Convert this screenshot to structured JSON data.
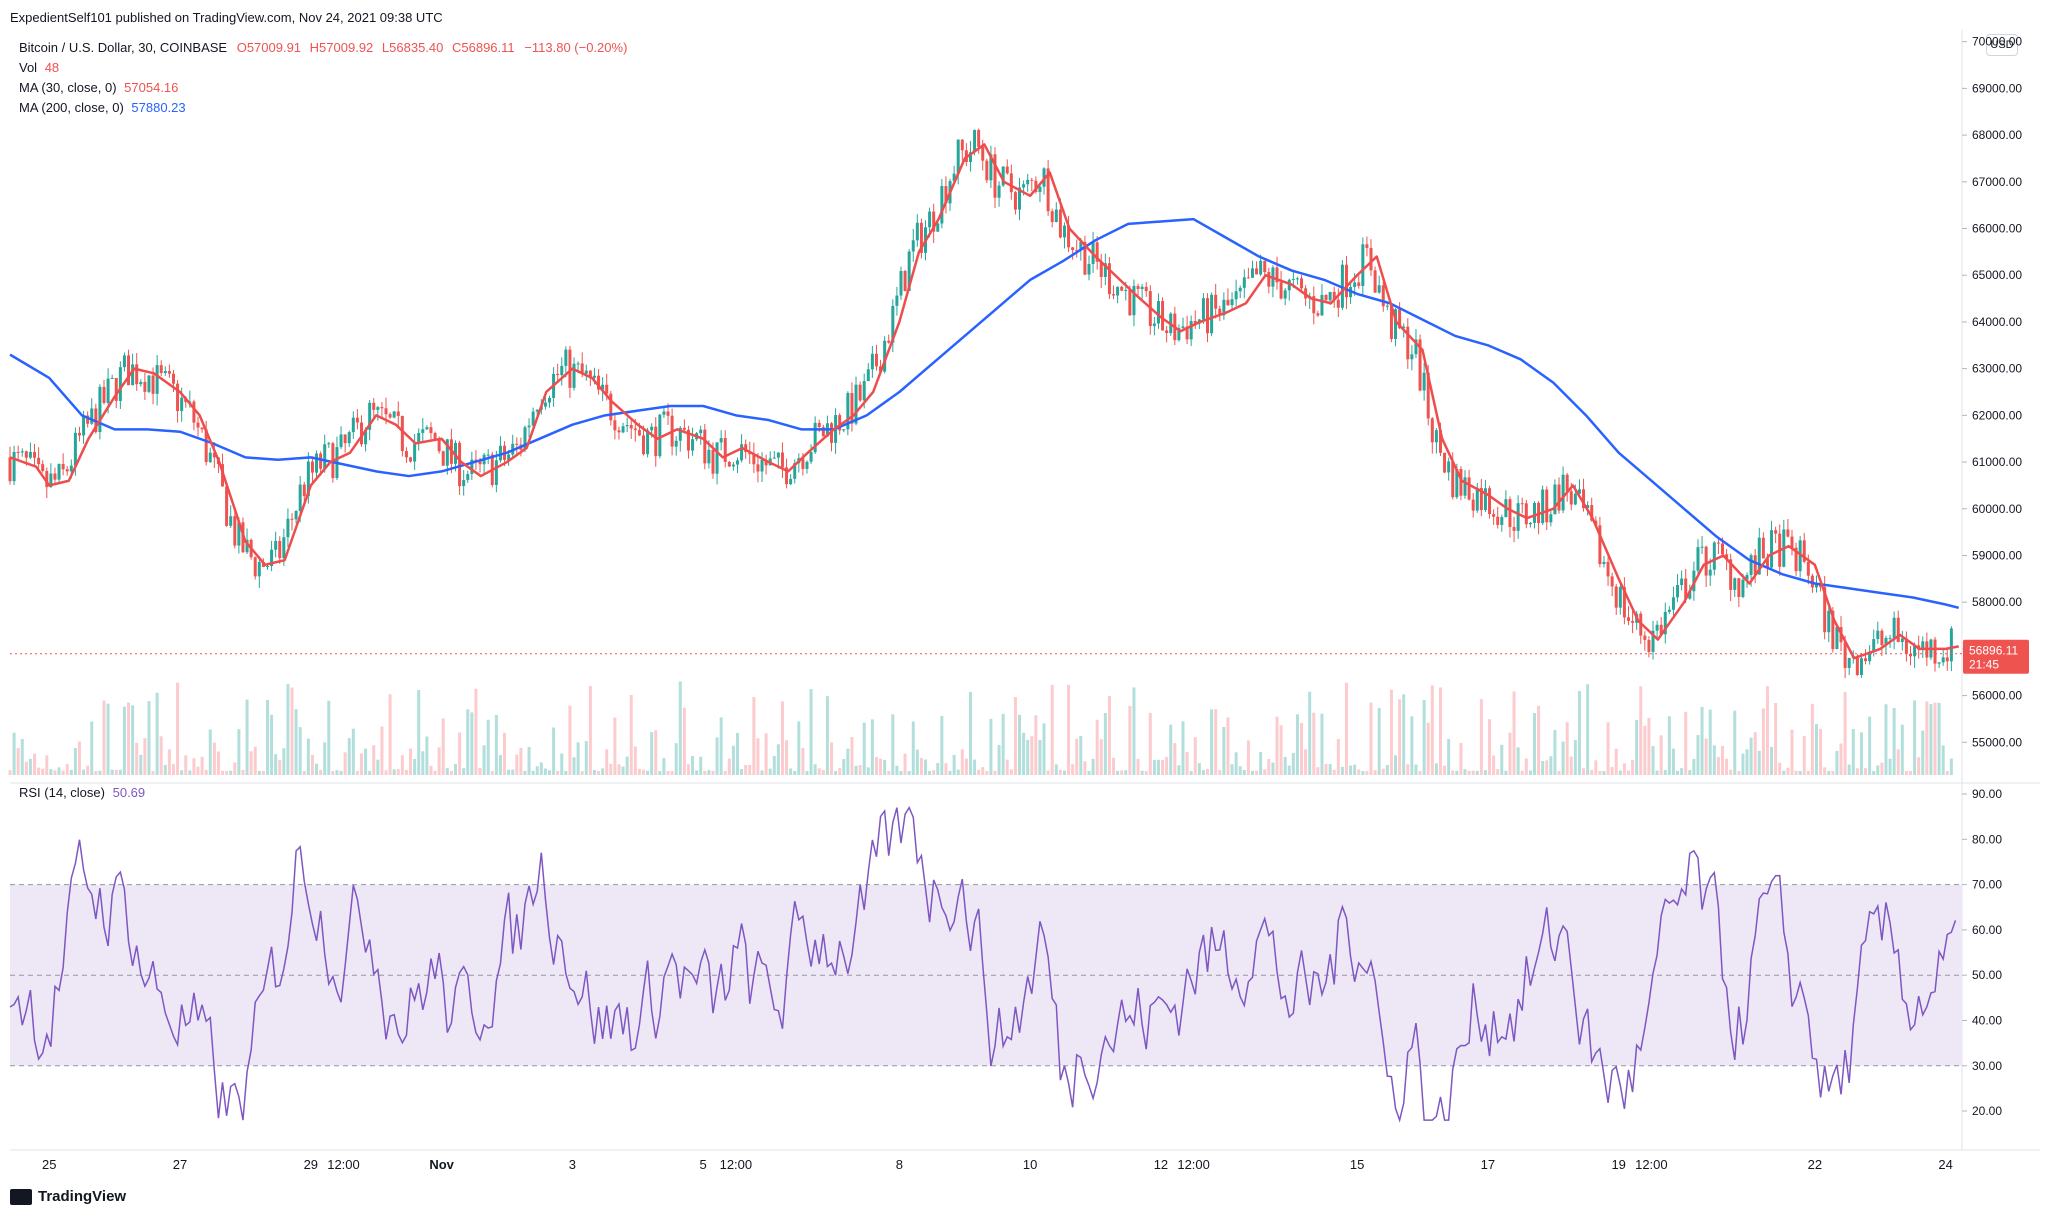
{
  "header": {
    "publisher_text": "ExpedientSelf101 published on TradingView.com, Nov 24, 2021 09:38 UTC"
  },
  "legend": {
    "symbol": "Bitcoin / U.S. Dollar, 30, COINBASE",
    "open": "O57009.91",
    "high": "H57009.92",
    "low": "L56835.40",
    "close": "C56896.11",
    "change": "−113.80 (−0.20%)",
    "vol_label": "Vol",
    "vol_value": "48",
    "ma30_label": "MA (30, close, 0)",
    "ma30_value": "57054.16",
    "ma200_label": "MA (200, close, 0)",
    "ma200_value": "57880.23"
  },
  "rsi_legend": {
    "label": "RSI (14, close)",
    "value": "50.69"
  },
  "currency_badge": "USD",
  "price_label": {
    "price": "56896.11",
    "countdown": "21:45"
  },
  "footer": {
    "brand": "TradingView"
  },
  "colors": {
    "ma30": "#ef4d4d",
    "ma200": "#2962ff",
    "up": "#26a69a",
    "down": "#ef5350",
    "rsi": "#7e57c2",
    "rsi_band": "#ede7f6"
  },
  "chart_data": [
    {
      "type": "candlestick",
      "title": "Bitcoin / U.S. Dollar, 30, COINBASE",
      "y_ticks": [
        55000,
        56000,
        57000,
        58000,
        59000,
        60000,
        61000,
        62000,
        63000,
        64000,
        65000,
        66000,
        67000,
        68000,
        69000,
        70000
      ],
      "y_tick_labels": [
        "55000.00",
        "56000.00",
        "57000.00",
        "58000.00",
        "59000.00",
        "60000.00",
        "61000.00",
        "62000.00",
        "63000.00",
        "64000.00",
        "65000.00",
        "66000.00",
        "67000.00",
        "68000.00",
        "69000.00",
        "70000.00"
      ],
      "ylim": [
        54300,
        70250
      ],
      "x_tick_labels": [
        "25",
        "27",
        "29",
        "12:00",
        "Nov",
        "3",
        "5",
        "12:00",
        "8",
        "10",
        "12",
        "12:00",
        "15",
        "17",
        "19",
        "12:00",
        "22",
        "24"
      ],
      "x_ticks_days": [
        0,
        2,
        4,
        4.5,
        6,
        8,
        10,
        10.5,
        13,
        15,
        17,
        17.5,
        20,
        22,
        24,
        24.5,
        27,
        29
      ],
      "xlim_days": [
        -0.6,
        29.25
      ],
      "last_price": 56896.11,
      "series": [
        {
          "name": "MA (30, close, 0)",
          "x_days": [
            -0.6,
            -0.2,
            0.0,
            0.3,
            0.6,
            1.0,
            1.3,
            1.6,
            2.0,
            2.3,
            2.6,
            3.0,
            3.3,
            3.6,
            4.0,
            4.3,
            4.6,
            5.0,
            5.3,
            5.6,
            6.0,
            6.3,
            6.6,
            7.0,
            7.3,
            7.6,
            8.0,
            8.3,
            8.6,
            9.0,
            9.3,
            9.6,
            10.0,
            10.3,
            10.6,
            11.0,
            11.3,
            11.6,
            12.0,
            12.3,
            12.6,
            13.0,
            13.3,
            13.6,
            14.0,
            14.3,
            14.6,
            15.0,
            15.3,
            15.6,
            16.0,
            16.3,
            16.6,
            17.0,
            17.3,
            17.6,
            18.0,
            18.3,
            18.6,
            19.0,
            19.3,
            19.6,
            20.0,
            20.3,
            20.6,
            21.0,
            21.3,
            21.6,
            22.0,
            22.3,
            22.6,
            23.0,
            23.3,
            23.6,
            24.0,
            24.3,
            24.6,
            25.0,
            25.3,
            25.6,
            26.0,
            26.3,
            26.6,
            27.0,
            27.3,
            27.6,
            28.0,
            28.3,
            28.6,
            29.0,
            29.2
          ],
          "values": [
            61100,
            60900,
            60500,
            60600,
            61500,
            62400,
            63000,
            62900,
            62500,
            62000,
            61000,
            59300,
            58800,
            58900,
            60500,
            61000,
            61200,
            62000,
            61800,
            61400,
            61500,
            61000,
            60700,
            61000,
            61300,
            62500,
            63000,
            62800,
            62300,
            61800,
            61500,
            61700,
            61500,
            61100,
            61300,
            61000,
            60800,
            61200,
            61700,
            62000,
            62500,
            64000,
            65500,
            66200,
            67500,
            67800,
            67000,
            66700,
            67200,
            66000,
            65400,
            65000,
            64600,
            64100,
            63800,
            64000,
            64200,
            64400,
            65000,
            64800,
            64500,
            64400,
            65000,
            65400,
            64000,
            63400,
            61500,
            60600,
            60300,
            60000,
            59800,
            60000,
            60500,
            59800,
            58500,
            57600,
            57200,
            58000,
            58800,
            59000,
            58400,
            59000,
            59200,
            58800,
            57600,
            56800,
            57000,
            57300,
            57000,
            57000,
            57054
          ]
        },
        {
          "name": "MA (200, close, 0)",
          "x_days": [
            -0.6,
            0.0,
            0.5,
            1.0,
            1.5,
            2.0,
            2.5,
            3.0,
            3.5,
            4.0,
            4.5,
            5.0,
            5.5,
            6.0,
            6.5,
            7.0,
            7.5,
            8.0,
            8.5,
            9.0,
            9.5,
            10.0,
            10.5,
            11.0,
            11.5,
            12.0,
            12.5,
            13.0,
            13.5,
            14.0,
            14.5,
            15.0,
            15.5,
            16.0,
            16.5,
            17.0,
            17.5,
            18.0,
            18.5,
            19.0,
            19.5,
            20.0,
            20.5,
            21.0,
            21.5,
            22.0,
            22.5,
            23.0,
            23.5,
            24.0,
            24.5,
            25.0,
            25.5,
            26.0,
            26.5,
            27.0,
            27.5,
            28.0,
            28.5,
            29.0,
            29.2
          ],
          "values": [
            63300,
            62800,
            62000,
            61700,
            61700,
            61650,
            61400,
            61100,
            61050,
            61100,
            60950,
            60800,
            60700,
            60800,
            61000,
            61200,
            61500,
            61800,
            62000,
            62100,
            62200,
            62200,
            62000,
            61900,
            61700,
            61700,
            62000,
            62500,
            63100,
            63700,
            64300,
            64900,
            65300,
            65750,
            66100,
            66150,
            66200,
            65800,
            65400,
            65100,
            64900,
            64600,
            64400,
            64050,
            63700,
            63500,
            63200,
            62700,
            62000,
            61200,
            60600,
            60000,
            59400,
            58900,
            58600,
            58400,
            58300,
            58200,
            58100,
            57950,
            57880
          ]
        }
      ],
      "volume_value": 48
    },
    {
      "type": "line",
      "title": "RSI (14, close)",
      "y_ticks": [
        20,
        30,
        40,
        50,
        60,
        70,
        80,
        90
      ],
      "y_tick_labels": [
        "20.00",
        "30.00",
        "40.00",
        "50.00",
        "60.00",
        "70.00",
        "80.00",
        "90.00"
      ],
      "ylim": [
        12.5,
        92
      ],
      "band": [
        30,
        70
      ],
      "midline": 50,
      "last_value": 50.69
    }
  ]
}
